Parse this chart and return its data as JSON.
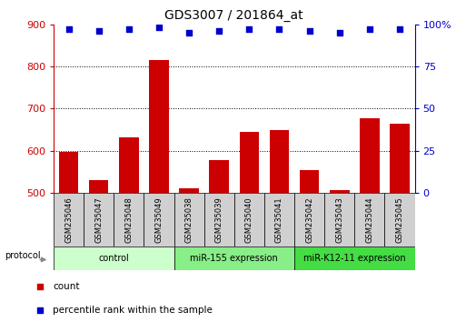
{
  "title": "GDS3007 / 201864_at",
  "samples": [
    "GSM235046",
    "GSM235047",
    "GSM235048",
    "GSM235049",
    "GSM235038",
    "GSM235039",
    "GSM235040",
    "GSM235041",
    "GSM235042",
    "GSM235043",
    "GSM235044",
    "GSM235045"
  ],
  "counts": [
    597,
    532,
    632,
    815,
    512,
    578,
    645,
    650,
    555,
    508,
    678,
    665
  ],
  "percentile_ranks": [
    97,
    96,
    97,
    98,
    95,
    96,
    97,
    97,
    96,
    95,
    97,
    97
  ],
  "groups": [
    {
      "label": "control",
      "start": 0,
      "end": 4,
      "color": "#ccffcc"
    },
    {
      "label": "miR-155 expression",
      "start": 4,
      "end": 8,
      "color": "#88ee88"
    },
    {
      "label": "miR-K12-11 expression",
      "start": 8,
      "end": 12,
      "color": "#44dd44"
    }
  ],
  "ylim_left": [
    500,
    900
  ],
  "ylim_right": [
    0,
    100
  ],
  "yticks_left": [
    500,
    600,
    700,
    800,
    900
  ],
  "yticks_right": [
    0,
    25,
    50,
    75,
    100
  ],
  "bar_color": "#cc0000",
  "scatter_color": "#0000cc",
  "bar_bottom": 500,
  "legend_count_color": "#cc0000",
  "legend_percentile_color": "#0000cc",
  "label_bg": "#d0d0d0",
  "fig_width": 5.13,
  "fig_height": 3.54,
  "dpi": 100
}
